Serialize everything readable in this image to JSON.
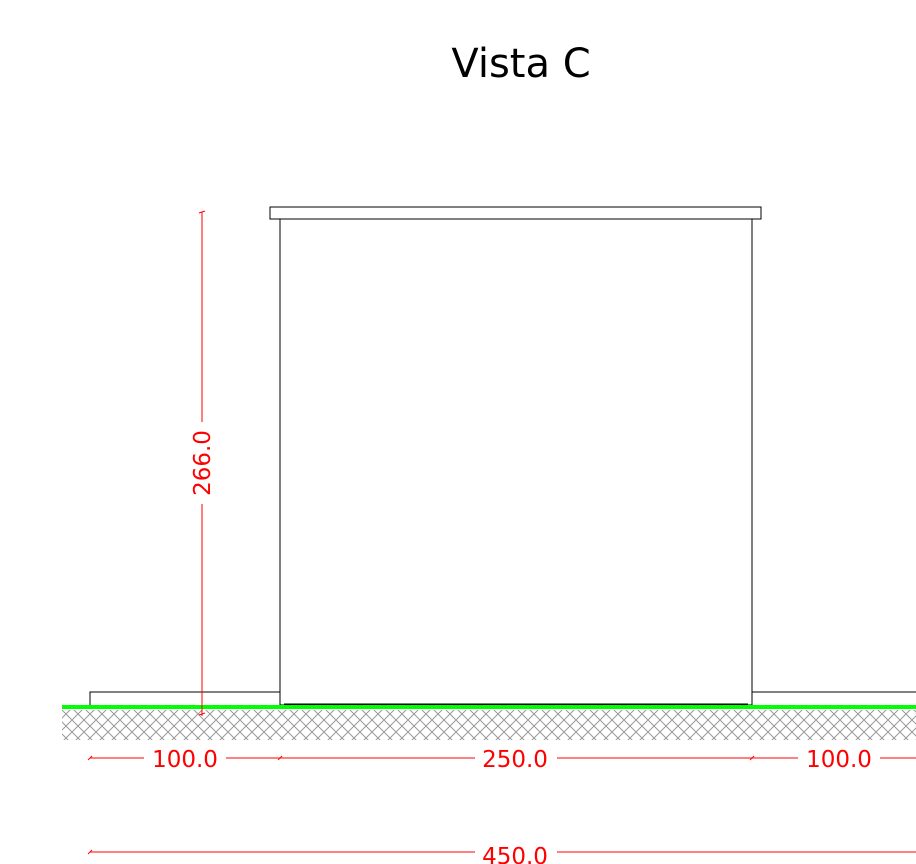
{
  "view_title": "Vista C",
  "dimensions": {
    "height": "266.0",
    "left_clearance": "100.0",
    "width": "250.0",
    "right_clearance": "100.0",
    "total_width": "450.0"
  },
  "colors": {
    "dimension": "#ff0000",
    "ground_line": "#00ff00",
    "outline": "#000000",
    "hatch": "#999999"
  }
}
